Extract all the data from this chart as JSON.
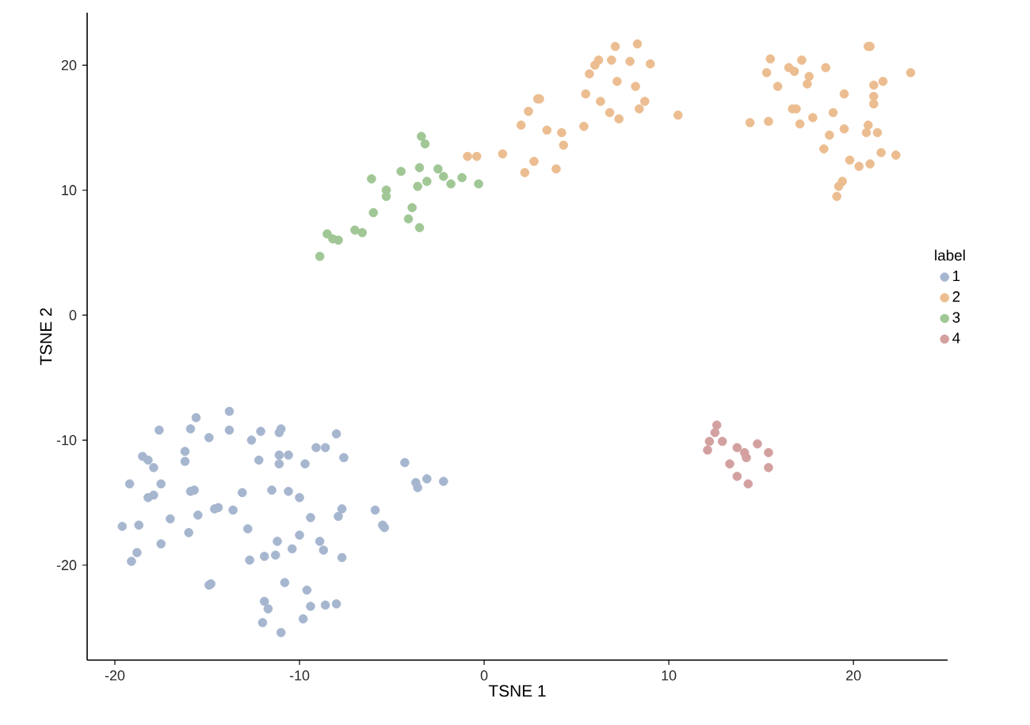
{
  "chart_data": {
    "type": "scatter",
    "xlabel": "TSNE 1",
    "ylabel": "TSNE 2",
    "legend_title": "label",
    "legend": "right",
    "marker": "circle",
    "grid": false,
    "xlim": [
      -21.5,
      25.1
    ],
    "ylim": [
      -27.6,
      24.2
    ],
    "xticks": [
      -20,
      -10,
      0,
      10,
      20
    ],
    "yticks": [
      -20,
      -10,
      0,
      10,
      20
    ],
    "series": [
      {
        "name": "1",
        "color": "#a6b6cf",
        "x": [
          -13.8,
          -15.6,
          -17.6,
          -15.9,
          -13.8,
          -14.9,
          -12.1,
          -11.0,
          -11.1,
          -12.6,
          -8.0,
          -16.2,
          -16.2,
          -18.5,
          -18.2,
          -17.9,
          -12.2,
          -11.1,
          -10.6,
          -11.1,
          -9.7,
          -9.1,
          -8.6,
          -7.6,
          -19.2,
          -17.5,
          -18.2,
          -17.9,
          -15.9,
          -15.7,
          -13.1,
          -11.5,
          -10.6,
          -10.0,
          -4.3,
          -3.7,
          -3.6,
          -3.1,
          -2.2,
          -14.6,
          -14.4,
          -13.6,
          -15.5,
          -17.0,
          -19.6,
          -18.7,
          -9.4,
          -7.9,
          -7.7,
          -5.9,
          -5.5,
          -5.4,
          -12.8,
          -16.0,
          -17.5,
          -10.0,
          -11.2,
          -10.4,
          -8.9,
          -8.7,
          -18.8,
          -19.1,
          -12.7,
          -11.9,
          -11.3,
          -7.7,
          -14.9,
          -14.8,
          -10.8,
          -9.6,
          -11.9,
          -11.7,
          -9.4,
          -8.6,
          -8.0,
          -9.8,
          -12.0,
          -11.0
        ],
        "values": [
          -7.7,
          -8.2,
          -9.2,
          -9.1,
          -9.2,
          -9.8,
          -9.3,
          -9.1,
          -9.4,
          -10.0,
          -9.5,
          -10.9,
          -11.7,
          -11.3,
          -11.6,
          -12.2,
          -11.6,
          -11.2,
          -11.2,
          -11.9,
          -11.9,
          -10.6,
          -10.6,
          -11.4,
          -13.5,
          -13.5,
          -14.6,
          -14.4,
          -14.1,
          -14.0,
          -14.2,
          -14.0,
          -14.1,
          -14.6,
          -11.8,
          -13.4,
          -13.8,
          -13.1,
          -13.3,
          -15.5,
          -15.4,
          -15.6,
          -16.0,
          -16.3,
          -16.9,
          -16.8,
          -16.2,
          -16.1,
          -15.5,
          -15.6,
          -16.8,
          -17.0,
          -17.1,
          -17.4,
          -18.3,
          -17.6,
          -18.1,
          -18.7,
          -18.1,
          -18.8,
          -19.0,
          -19.7,
          -19.6,
          -19.3,
          -19.2,
          -19.4,
          -21.6,
          -21.5,
          -21.4,
          -22.0,
          -22.9,
          -23.5,
          -23.3,
          -23.2,
          -23.1,
          -24.3,
          -24.6,
          -25.4
        ]
      },
      {
        "name": "2",
        "color": "#ebbd90",
        "x": [
          -0.9,
          -0.4,
          1.0,
          2.2,
          2.7,
          3.9,
          2.0,
          2.4,
          2.9,
          3.0,
          3.4,
          4.2,
          4.3,
          5.4,
          5.5,
          5.7,
          6.0,
          6.2,
          6.3,
          6.9,
          7.1,
          6.8,
          7.3,
          7.2,
          7.9,
          8.2,
          8.3,
          8.7,
          8.4,
          9.0,
          10.5,
          20.8,
          20.9,
          15.5,
          17.2,
          15.3,
          16.5,
          16.8,
          17.6,
          17.5,
          18.5,
          23.1,
          15.9,
          21.1,
          21.6,
          19.5,
          21.1,
          21.1,
          16.7,
          16.9,
          18.9,
          14.4,
          15.4,
          17.1,
          17.8,
          19.5,
          20.8,
          20.7,
          21.3,
          18.7,
          18.4,
          21.5,
          22.3,
          19.8,
          20.3,
          20.9,
          19.4,
          19.2,
          19.1
        ],
        "values": [
          12.7,
          12.7,
          12.9,
          11.4,
          12.3,
          11.7,
          15.2,
          16.3,
          17.3,
          17.3,
          14.8,
          14.6,
          13.6,
          15.1,
          17.7,
          19.3,
          20.0,
          20.4,
          17.1,
          20.4,
          21.5,
          16.2,
          15.7,
          18.7,
          20.3,
          18.3,
          21.7,
          17.1,
          16.5,
          20.1,
          16.0,
          21.5,
          21.5,
          20.5,
          20.4,
          19.4,
          19.8,
          19.5,
          19.1,
          18.5,
          19.8,
          19.4,
          18.3,
          18.4,
          18.7,
          17.7,
          17.5,
          16.9,
          16.5,
          16.5,
          16.2,
          15.4,
          15.5,
          15.3,
          15.8,
          14.9,
          15.2,
          14.6,
          14.6,
          14.4,
          13.3,
          13.0,
          12.8,
          12.4,
          11.9,
          12.1,
          10.7,
          10.3,
          9.5
        ]
      },
      {
        "name": "3",
        "color": "#a0c795",
        "x": [
          -3.4,
          -3.2,
          -6.1,
          -4.5,
          -5.3,
          -5.3,
          -3.5,
          -2.5,
          -2.2,
          -3.1,
          -3.6,
          -1.8,
          -1.2,
          -0.3,
          -3.9,
          -6.0,
          -4.1,
          -3.5,
          -7.0,
          -6.6,
          -8.5,
          -8.2,
          -7.9,
          -8.9
        ],
        "values": [
          14.3,
          13.7,
          10.9,
          11.5,
          10.0,
          9.5,
          11.8,
          11.7,
          11.1,
          10.7,
          10.3,
          10.5,
          11.0,
          10.5,
          8.6,
          8.2,
          7.7,
          7.0,
          6.8,
          6.6,
          6.5,
          6.1,
          6.0,
          4.7
        ]
      },
      {
        "name": "4",
        "color": "#d3a0a0",
        "x": [
          12.6,
          12.5,
          12.2,
          12.1,
          12.9,
          13.7,
          14.1,
          14.2,
          14.8,
          15.4,
          13.3,
          15.4,
          13.7,
          14.3
        ],
        "values": [
          -8.8,
          -9.4,
          -10.1,
          -10.8,
          -10.1,
          -10.6,
          -11.0,
          -11.4,
          -10.3,
          -11.0,
          -11.9,
          -12.2,
          -12.9,
          -13.5
        ]
      }
    ]
  }
}
